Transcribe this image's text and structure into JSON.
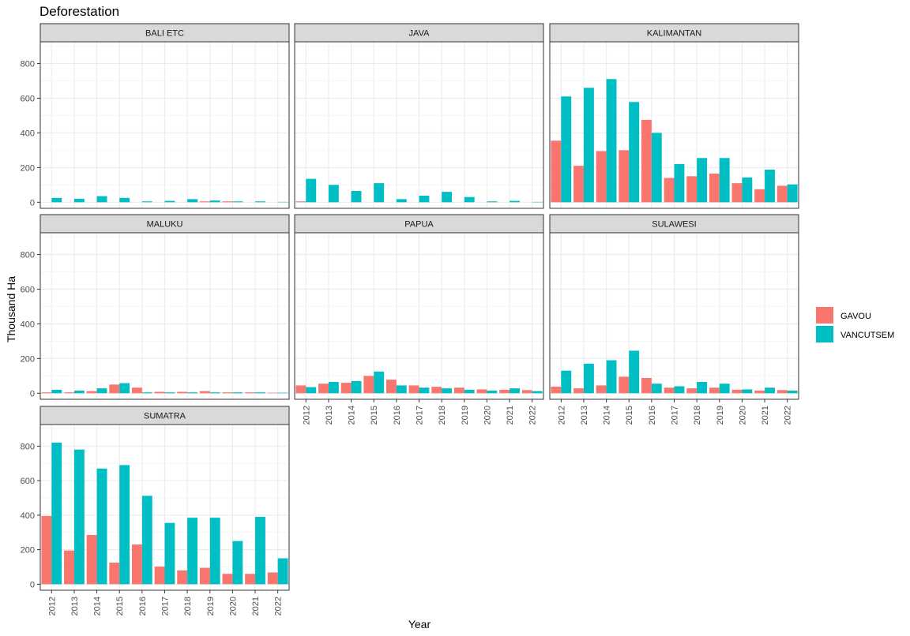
{
  "chart_data": {
    "type": "bar",
    "title": "Deforestation",
    "xlabel": "Year",
    "ylabel": "Thousand Ha",
    "ylim": [
      -35,
      925
    ],
    "yticks": [
      0,
      200,
      400,
      600,
      800
    ],
    "grid": true,
    "legend_position": "right",
    "categories": [
      "2012",
      "2013",
      "2014",
      "2015",
      "2016",
      "2017",
      "2018",
      "2019",
      "2020",
      "2021",
      "2022"
    ],
    "series": [
      {
        "name": "GAVOU",
        "color": "#F8766D"
      },
      {
        "name": "VANCUTSEM",
        "color": "#00BFC4"
      }
    ],
    "facets": [
      {
        "name": "BALI ETC",
        "GAVOU": [
          0,
          0,
          0,
          0,
          0,
          0,
          0,
          5,
          5,
          0,
          0
        ],
        "VANCUTSEM": [
          25,
          20,
          35,
          25,
          5,
          8,
          18,
          10,
          5,
          5,
          2
        ]
      },
      {
        "name": "JAVA",
        "GAVOU": [
          5,
          0,
          0,
          0,
          0,
          0,
          0,
          0,
          0,
          0,
          0
        ],
        "VANCUTSEM": [
          135,
          100,
          65,
          110,
          18,
          38,
          60,
          30,
          5,
          8,
          2
        ]
      },
      {
        "name": "KALIMANTAN",
        "GAVOU": [
          355,
          210,
          295,
          300,
          475,
          140,
          150,
          165,
          110,
          75,
          95
        ],
        "VANCUTSEM": [
          610,
          660,
          710,
          578,
          400,
          220,
          255,
          255,
          143,
          188,
          103
        ]
      },
      {
        "name": "MALUKU",
        "GAVOU": [
          5,
          5,
          12,
          50,
          32,
          8,
          8,
          12,
          5,
          5,
          3
        ],
        "VANCUTSEM": [
          20,
          15,
          28,
          58,
          5,
          5,
          5,
          5,
          5,
          5,
          3
        ]
      },
      {
        "name": "PAPUA",
        "GAVOU": [
          45,
          55,
          60,
          100,
          78,
          45,
          37,
          32,
          22,
          20,
          18
        ],
        "VANCUTSEM": [
          35,
          65,
          70,
          125,
          45,
          32,
          28,
          20,
          15,
          28,
          12
        ]
      },
      {
        "name": "SULAWESI",
        "GAVOU": [
          38,
          28,
          45,
          95,
          88,
          32,
          28,
          32,
          20,
          15,
          18
        ],
        "VANCUTSEM": [
          130,
          170,
          190,
          245,
          55,
          40,
          65,
          55,
          22,
          32,
          15
        ]
      },
      {
        "name": "SUMATRA",
        "GAVOU": [
          395,
          195,
          285,
          125,
          230,
          102,
          80,
          95,
          60,
          60,
          68
        ],
        "VANCUTSEM": [
          820,
          780,
          670,
          690,
          512,
          355,
          385,
          385,
          250,
          390,
          150
        ]
      }
    ]
  }
}
